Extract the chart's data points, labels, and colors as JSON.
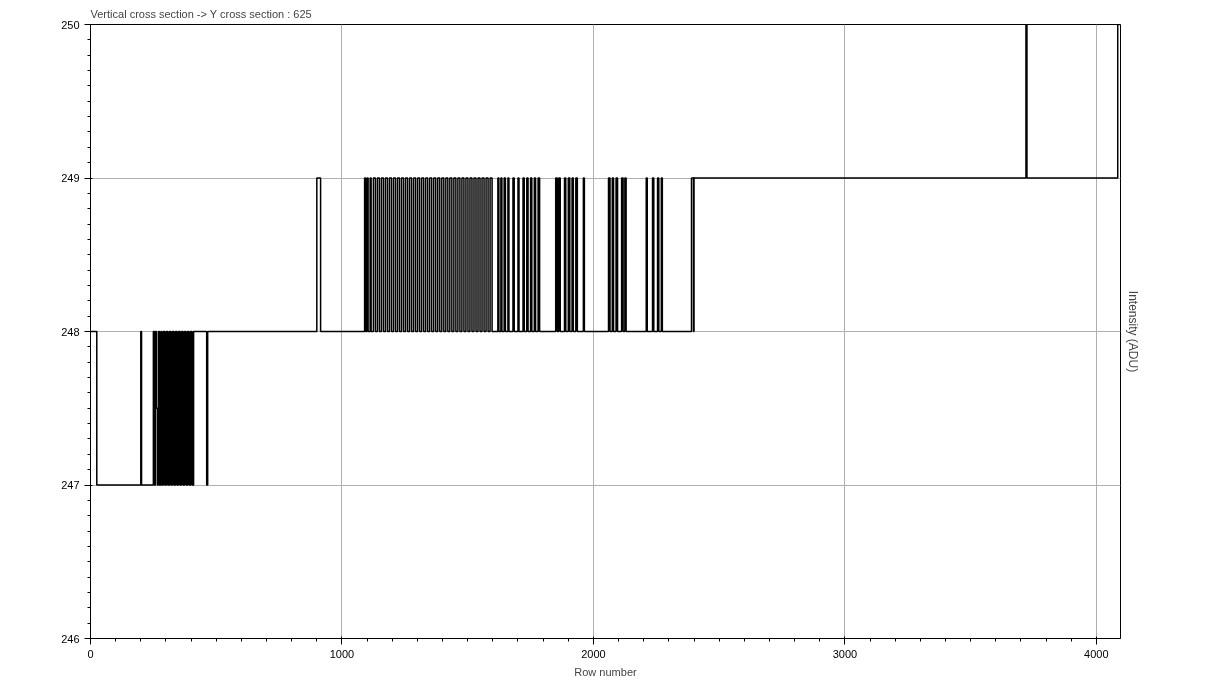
{
  "chart_data": {
    "type": "step",
    "title": "Vertical cross section -> Y cross section : 625",
    "xlabel": "Row number",
    "ylabel": "Intensity (ADU)",
    "x": [
      0,
      25,
      200,
      203,
      250,
      254,
      258,
      262,
      266,
      270,
      274,
      280,
      284,
      290,
      296,
      302,
      308,
      314,
      320,
      326,
      332,
      338,
      344,
      350,
      356,
      362,
      368,
      374,
      380,
      386,
      392,
      398,
      404,
      410,
      462,
      466,
      900,
      915,
      1090,
      1094,
      1100,
      1104,
      1112,
      1116,
      1125,
      1133,
      1141,
      1149,
      1157,
      1165,
      1173,
      1181,
      1189,
      1197,
      1205,
      1213,
      1221,
      1229,
      1237,
      1245,
      1253,
      1261,
      1269,
      1277,
      1285,
      1293,
      1301,
      1309,
      1317,
      1325,
      1333,
      1341,
      1349,
      1357,
      1365,
      1373,
      1381,
      1389,
      1397,
      1405,
      1413,
      1421,
      1429,
      1437,
      1445,
      1453,
      1461,
      1469,
      1477,
      1485,
      1493,
      1501,
      1509,
      1517,
      1525,
      1533,
      1541,
      1549,
      1557,
      1565,
      1573,
      1581,
      1589,
      1597,
      1620,
      1624,
      1632,
      1636,
      1645,
      1650,
      1660,
      1664,
      1680,
      1685,
      1700,
      1704,
      1720,
      1725,
      1735,
      1740,
      1750,
      1755,
      1765,
      1770,
      1780,
      1786,
      1850,
      1856,
      1862,
      1868,
      1885,
      1890,
      1900,
      1906,
      1915,
      1920,
      1930,
      1936,
      1960,
      1964,
      2060,
      2066,
      2075,
      2080,
      2090,
      2096,
      2112,
      2118,
      2125,
      2130,
      2210,
      2214,
      2235,
      2240,
      2255,
      2260,
      2270,
      2274,
      2390,
      2398,
      2400,
      3720,
      3724,
      4085,
      4096
    ],
    "values": [
      248,
      247,
      248,
      247,
      248,
      247,
      248,
      247.5,
      247,
      248,
      247,
      248,
      247,
      248,
      247,
      248,
      247,
      248,
      247,
      248,
      247,
      248,
      247,
      248,
      247,
      248,
      247,
      248,
      247,
      248,
      247,
      248,
      247,
      248,
      247,
      248,
      249,
      248,
      249,
      248,
      249,
      248,
      249,
      248,
      249,
      248,
      249,
      248,
      249,
      248,
      249,
      248,
      249,
      248,
      249,
      248,
      249,
      248,
      249,
      248,
      249,
      248,
      249,
      248,
      249,
      248,
      249,
      248,
      249,
      248,
      249,
      248,
      249,
      248,
      249,
      248,
      249,
      248,
      249,
      248,
      249,
      248,
      249,
      248,
      249,
      248,
      249,
      248,
      249,
      248,
      249,
      248,
      249,
      248,
      249,
      248,
      249,
      248,
      249,
      248,
      249,
      248,
      249,
      248,
      249,
      248,
      249,
      248,
      249,
      248,
      249,
      248,
      249,
      248,
      249,
      248,
      249,
      248,
      249,
      248,
      249,
      248,
      249,
      248,
      249,
      248,
      249,
      248,
      249,
      248,
      249,
      248,
      249,
      248,
      249,
      248,
      249,
      248,
      249,
      248,
      249,
      248,
      249,
      248,
      249,
      248,
      249,
      248,
      249,
      248,
      249,
      248,
      249,
      248,
      249,
      248,
      249,
      248,
      249,
      248,
      249,
      250,
      249,
      250,
      250
    ],
    "color": "#000000",
    "xlim": [
      0,
      4096
    ],
    "ylim": [
      246,
      250
    ],
    "xticks": [
      0,
      1000,
      2000,
      3000,
      4000
    ],
    "yticks": [
      246,
      247,
      248,
      249,
      250
    ],
    "grid": true,
    "marker": "none",
    "line_style": "solid"
  }
}
